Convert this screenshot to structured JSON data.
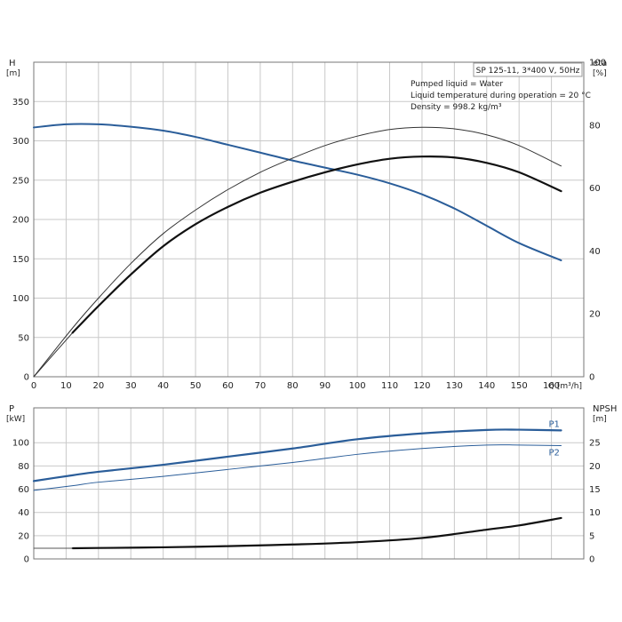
{
  "chart_data": [
    {
      "type": "line",
      "name": "head-efficiency",
      "left_axis": {
        "title": "H",
        "unit": "[m]",
        "range": [
          0,
          400
        ],
        "ticks": [
          0,
          50,
          100,
          150,
          200,
          250,
          300,
          350
        ]
      },
      "right_axis": {
        "title": "eta",
        "unit": "[%]",
        "range": [
          0,
          100
        ],
        "ticks": [
          0,
          20,
          40,
          60,
          80,
          100
        ]
      },
      "x_axis": {
        "label": "Q [m³/h]",
        "range": [
          0,
          170
        ],
        "ticks": [
          0,
          10,
          20,
          30,
          40,
          50,
          60,
          70,
          80,
          90,
          100,
          110,
          120,
          130,
          140,
          150,
          160
        ]
      },
      "grid": true,
      "info_box": {
        "title": "SP 125-11, 3*400 V, 50Hz",
        "lines": [
          "Pumped liquid = Water",
          "Liquid temperature during operation = 20 °C",
          "Density = 998.2 kg/m³"
        ]
      },
      "series": [
        {
          "id": "head",
          "axis": "left",
          "color": "#2a5d99",
          "width": 2,
          "style": "solid",
          "x": [
            0,
            10,
            20,
            30,
            40,
            50,
            60,
            70,
            80,
            90,
            100,
            110,
            120,
            130,
            140,
            150,
            163
          ],
          "y": [
            317,
            321,
            321,
            318,
            313,
            305,
            295,
            285,
            275,
            266,
            257,
            246,
            232,
            214,
            192,
            170,
            148
          ]
        },
        {
          "id": "eta-thin",
          "axis": "right",
          "color": "#333333",
          "width": 1,
          "style": "solid",
          "x": [
            0,
            12,
            20,
            30,
            40,
            50,
            60,
            70,
            80,
            90,
            100,
            110,
            120,
            130,
            140,
            150,
            163
          ],
          "y": [
            0,
            15.5,
            25,
            36,
            45.5,
            53,
            59.5,
            65,
            69.5,
            73.5,
            76.5,
            78.6,
            79.3,
            78.8,
            76.9,
            73.5,
            67
          ]
        },
        {
          "id": "eta-thin-ext",
          "axis": "right",
          "color": "#333333",
          "width": 1,
          "style": "solid",
          "x": [
            0,
            12
          ],
          "y": [
            0,
            14
          ]
        },
        {
          "id": "eta-thick",
          "axis": "right",
          "color": "#111111",
          "width": 2.2,
          "style": "solid",
          "x": [
            12,
            20,
            30,
            40,
            50,
            60,
            70,
            80,
            90,
            100,
            110,
            120,
            130,
            140,
            150,
            163
          ],
          "y": [
            14,
            22.5,
            32.5,
            41.5,
            48.5,
            54,
            58.5,
            62,
            65,
            67.5,
            69.3,
            70,
            69.7,
            68,
            65,
            59
          ]
        }
      ]
    },
    {
      "type": "line",
      "name": "power-npsh",
      "left_axis": {
        "title": "P",
        "unit": "[kW]",
        "range": [
          0,
          130
        ],
        "ticks": [
          0,
          20,
          40,
          60,
          80,
          100
        ]
      },
      "right_axis": {
        "title": "NPSH",
        "unit": "[m]",
        "range": [
          0,
          32.5
        ],
        "ticks": [
          0,
          5,
          10,
          15,
          20,
          25
        ]
      },
      "x_axis": {
        "label": "",
        "range": [
          0,
          170
        ],
        "ticks": [
          0,
          10,
          20,
          30,
          40,
          50,
          60,
          70,
          80,
          90,
          100,
          110,
          120,
          130,
          140,
          150,
          160
        ]
      },
      "grid": true,
      "series": [
        {
          "id": "P1",
          "name": "P1",
          "axis": "left",
          "color": "#2a5d99",
          "width": 2.2,
          "style": "solid",
          "x": [
            0,
            12,
            20,
            40,
            60,
            80,
            100,
            120,
            140,
            150,
            163
          ],
          "y": [
            67,
            72,
            75,
            81,
            88,
            95,
            103,
            108,
            111,
            111.2,
            110.6
          ]
        },
        {
          "id": "P2",
          "name": "P2",
          "axis": "left",
          "color": "#2a5d99",
          "width": 1,
          "style": "solid",
          "x": [
            0,
            12,
            20,
            40,
            60,
            80,
            100,
            120,
            140,
            150,
            163
          ],
          "y": [
            59,
            63,
            66,
            71,
            77,
            83,
            90,
            95,
            98,
            98,
            97.5
          ]
        },
        {
          "id": "NPSH",
          "axis": "right",
          "color": "#111111",
          "width": 2.2,
          "style": "solid",
          "x": [
            12,
            20,
            40,
            60,
            80,
            100,
            120,
            140,
            150,
            163
          ],
          "y": [
            2.3,
            2.35,
            2.5,
            2.75,
            3.1,
            3.6,
            4.5,
            6.3,
            7.2,
            8.8
          ]
        },
        {
          "id": "NPSH-ext",
          "axis": "right",
          "color": "#555555",
          "width": 1,
          "style": "solid",
          "x": [
            0,
            12
          ],
          "y": [
            2.3,
            2.3
          ]
        }
      ]
    }
  ]
}
